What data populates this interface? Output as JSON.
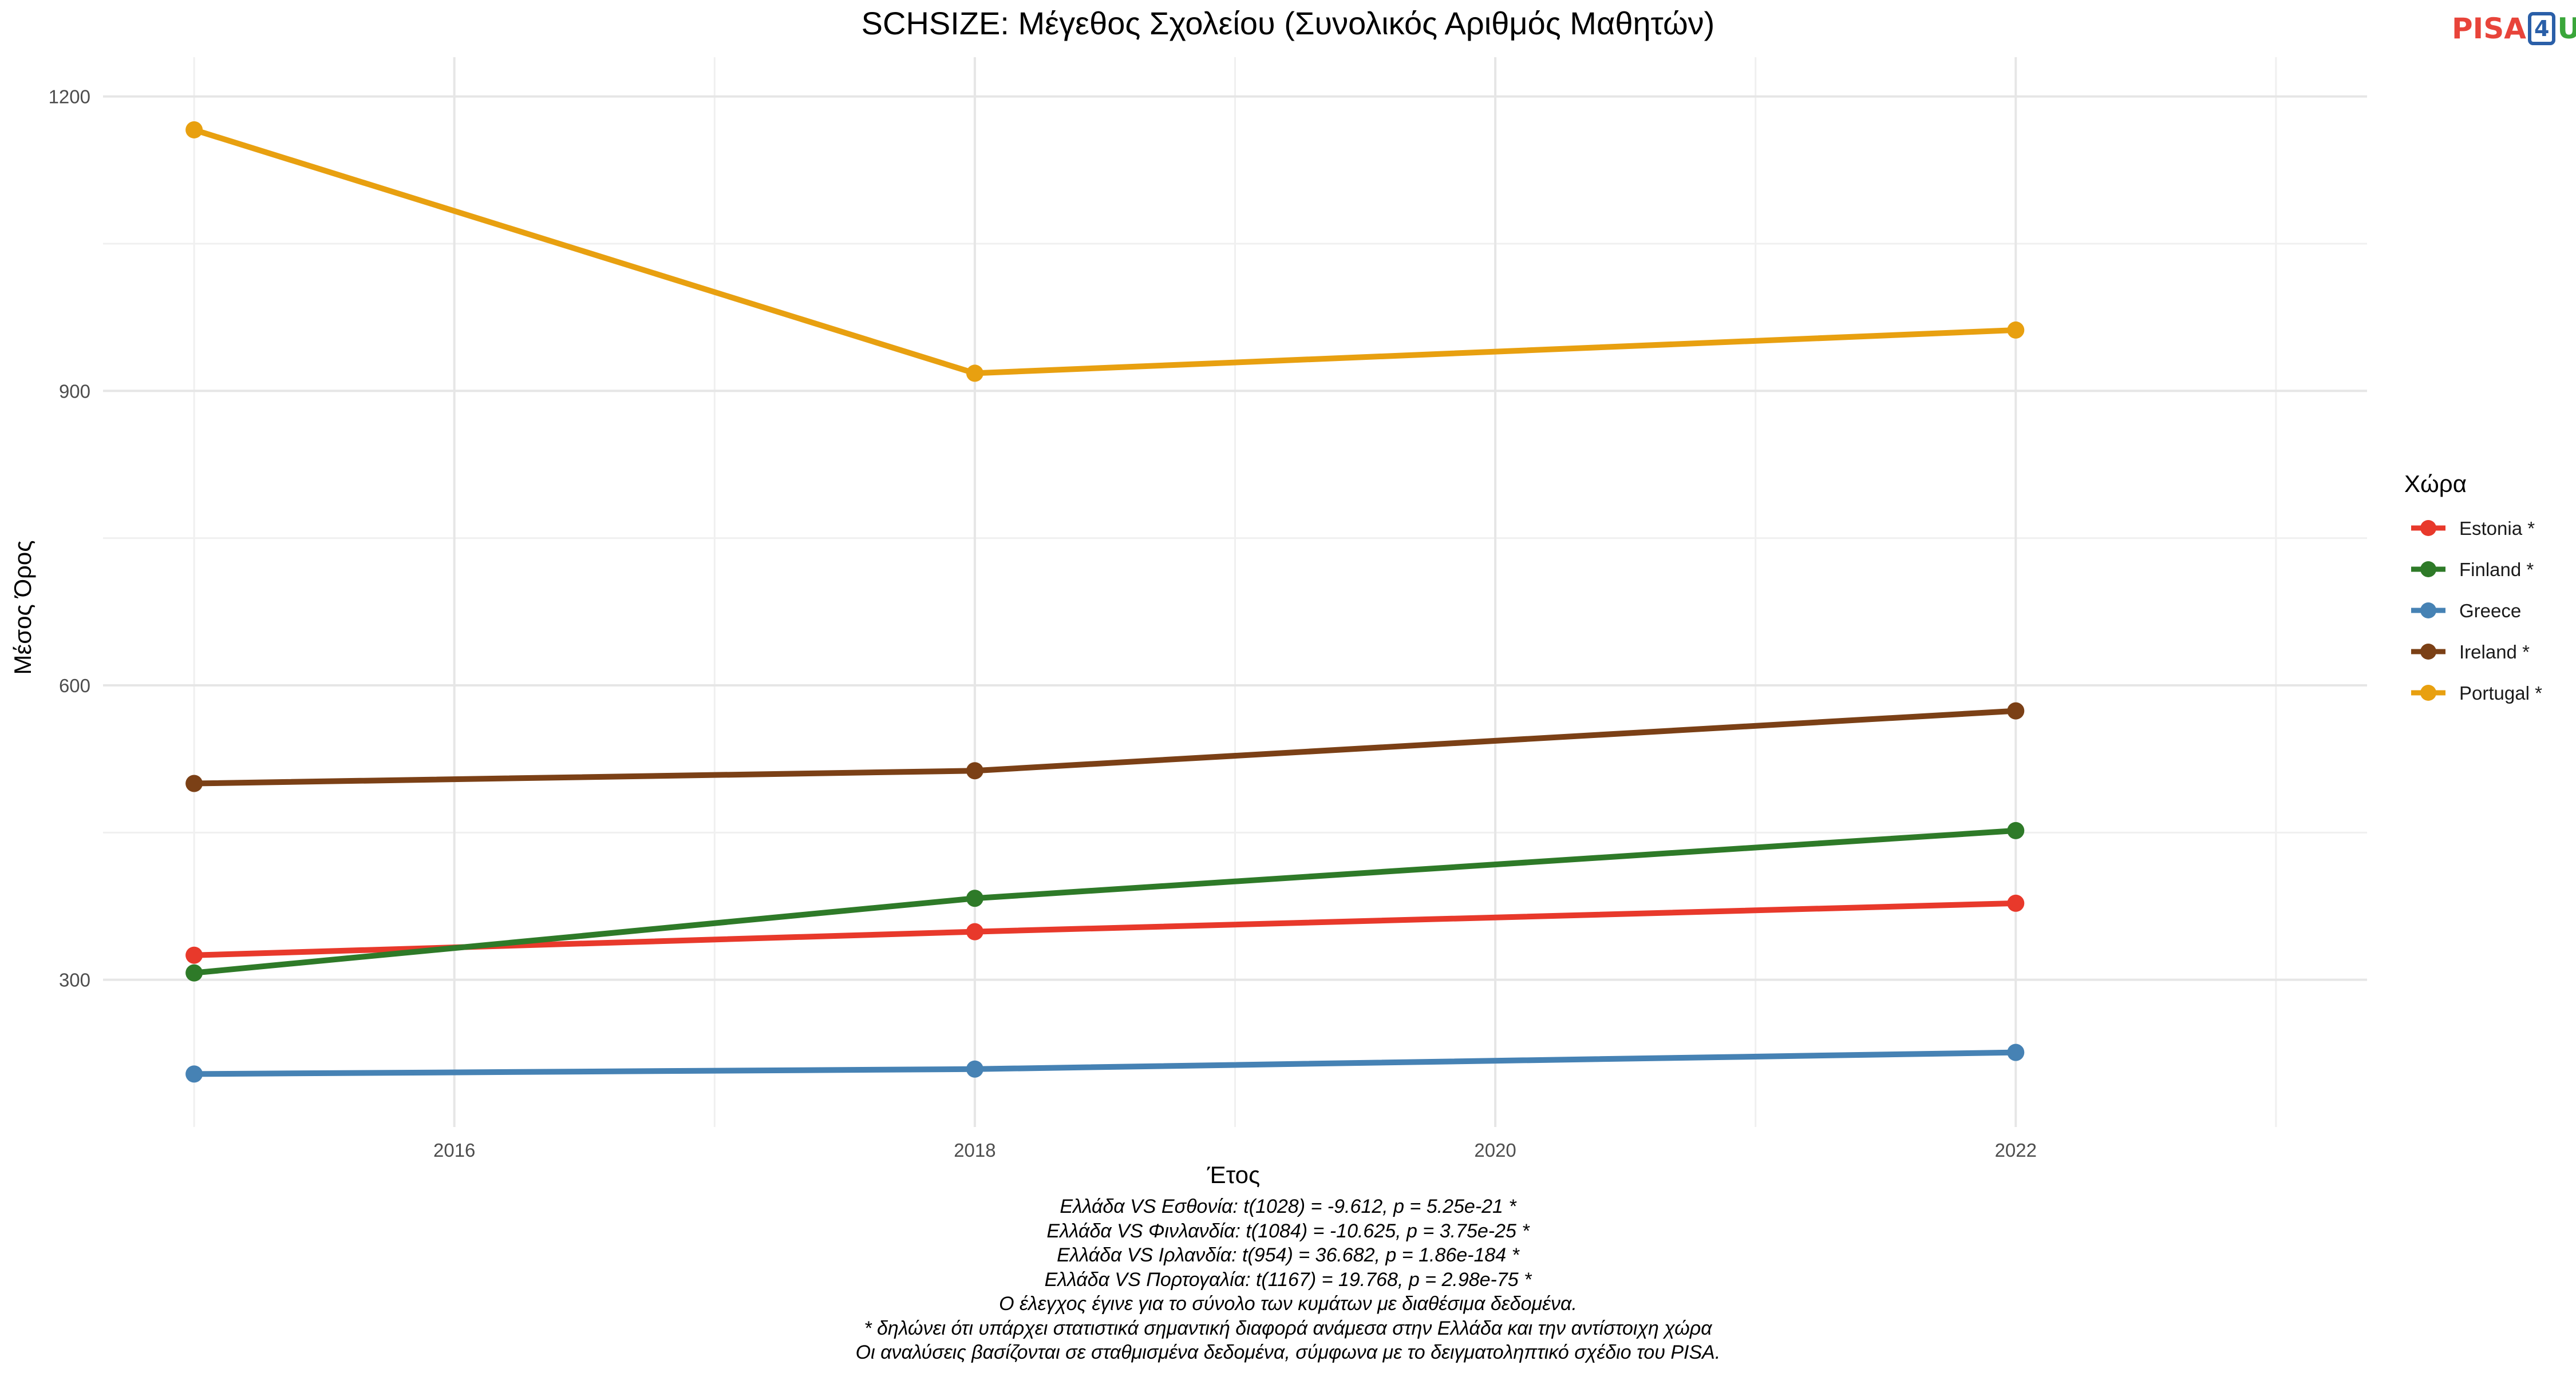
{
  "logo": {
    "part1": "PISA",
    "part2": "4",
    "part3": "U"
  },
  "chart_data": {
    "type": "line",
    "title": "SCHSIZE: Μέγεθος Σχολείου (Συνολικός Αριθμός Μαθητών)",
    "xlabel": "Έτος",
    "ylabel": "Μέσος Όρος",
    "x_ticks": [
      2016,
      2018,
      2020,
      2022
    ],
    "y_ticks": [
      300,
      600,
      900,
      1200
    ],
    "xlim": [
      2014.65,
      2023.35
    ],
    "ylim": [
      150,
      1240
    ],
    "grid": true,
    "legend": {
      "title": "Χώρα",
      "position": "right"
    },
    "series": [
      {
        "name": "Estonia *",
        "color": "#e8392b",
        "x": [
          2015,
          2018,
          2022
        ],
        "y": [
          325,
          349,
          378
        ]
      },
      {
        "name": "Finland *",
        "color": "#2e7a28",
        "x": [
          2015,
          2018,
          2022
        ],
        "y": [
          307,
          383,
          452
        ]
      },
      {
        "name": "Greece",
        "color": "#4682b4",
        "x": [
          2015,
          2018,
          2022
        ],
        "y": [
          204,
          209,
          226
        ]
      },
      {
        "name": "Ireland *",
        "color": "#7b4016",
        "x": [
          2015,
          2018,
          2022
        ],
        "y": [
          500,
          513,
          574
        ]
      },
      {
        "name": "Portugal *",
        "color": "#e8a010",
        "x": [
          2015,
          2018,
          2022
        ],
        "y": [
          1166,
          918,
          962
        ]
      }
    ]
  },
  "notes": [
    "Ελλάδα VS Εσθονία: t(1028) = -9.612, p = 5.25e-21 *",
    "Ελλάδα VS Φινλανδία: t(1084) = -10.625, p = 3.75e-25 *",
    "Ελλάδα VS Ιρλανδία: t(954) = 36.682, p = 1.86e-184 *",
    "Ελλάδα VS Πορτογαλία: t(1167) = 19.768, p = 2.98e-75 *",
    "Ο έλεγχος έγινε για το σύνολο των κυμάτων με διαθέσιμα δεδομένα.",
    "* δηλώνει ότι υπάρχει στατιστικά σημαντική διαφορά ανάμεσα στην Ελλάδα και την αντίστοιχη χώρα",
    "Οι αναλύσεις βασίζονται σε σταθμισμένα δεδομένα, σύμφωνα με το δειγματοληπτικό σχέδιο του PISA."
  ]
}
